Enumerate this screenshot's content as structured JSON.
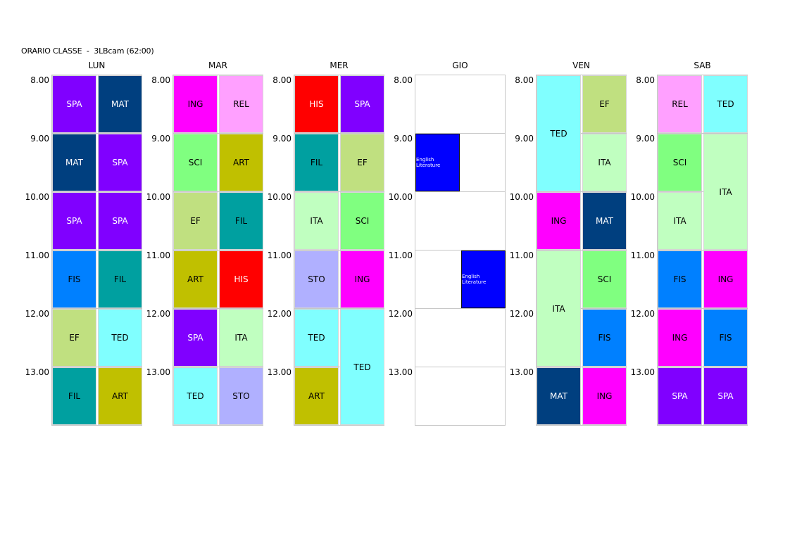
{
  "title": "ORARIO CLASSE  -  3LBcam (62:00)",
  "hours": [
    "8.00",
    "9.00",
    "10.00",
    "11.00",
    "12.00",
    "13.00"
  ],
  "days": [
    {
      "label": "LUN",
      "entries": [
        {
          "text": "SPA",
          "bg": "#8000ff",
          "fg": "#ffffff",
          "start": 0,
          "span": 1,
          "col": 0,
          "cols": 1
        },
        {
          "text": "MAT",
          "bg": "#003f7f",
          "fg": "#ffffff",
          "start": 0,
          "span": 1,
          "col": 1,
          "cols": 1
        },
        {
          "text": "MAT",
          "bg": "#003f7f",
          "fg": "#ffffff",
          "start": 1,
          "span": 1,
          "col": 0,
          "cols": 1
        },
        {
          "text": "SPA",
          "bg": "#8000ff",
          "fg": "#ffffff",
          "start": 1,
          "span": 1,
          "col": 1,
          "cols": 1
        },
        {
          "text": "SPA",
          "bg": "#8000ff",
          "fg": "#ffffff",
          "start": 2,
          "span": 1,
          "col": 0,
          "cols": 1
        },
        {
          "text": "SPA",
          "bg": "#8000ff",
          "fg": "#ffffff",
          "start": 2,
          "span": 1,
          "col": 1,
          "cols": 1
        },
        {
          "text": "FIS",
          "bg": "#0080ff",
          "fg": "#000000",
          "start": 3,
          "span": 1,
          "col": 0,
          "cols": 1
        },
        {
          "text": "FIL",
          "bg": "#00a0a0",
          "fg": "#000000",
          "start": 3,
          "span": 1,
          "col": 1,
          "cols": 1
        },
        {
          "text": "EF",
          "bg": "#c0e080",
          "fg": "#000000",
          "start": 4,
          "span": 1,
          "col": 0,
          "cols": 1
        },
        {
          "text": "TED",
          "bg": "#80ffff",
          "fg": "#000000",
          "start": 4,
          "span": 1,
          "col": 1,
          "cols": 1
        },
        {
          "text": "FIL",
          "bg": "#00a0a0",
          "fg": "#000000",
          "start": 5,
          "span": 1,
          "col": 0,
          "cols": 1
        },
        {
          "text": "ART",
          "bg": "#c0c000",
          "fg": "#000000",
          "start": 5,
          "span": 1,
          "col": 1,
          "cols": 1
        }
      ]
    },
    {
      "label": "MAR",
      "entries": [
        {
          "text": "ING",
          "bg": "#ff00ff",
          "fg": "#000000",
          "start": 0,
          "span": 1,
          "col": 0,
          "cols": 1
        },
        {
          "text": "REL",
          "bg": "#ffa0ff",
          "fg": "#000000",
          "start": 0,
          "span": 1,
          "col": 1,
          "cols": 1
        },
        {
          "text": "SCI",
          "bg": "#80ff80",
          "fg": "#000000",
          "start": 1,
          "span": 1,
          "col": 0,
          "cols": 1
        },
        {
          "text": "ART",
          "bg": "#c0c000",
          "fg": "#000000",
          "start": 1,
          "span": 1,
          "col": 1,
          "cols": 1
        },
        {
          "text": "EF",
          "bg": "#c0e080",
          "fg": "#000000",
          "start": 2,
          "span": 1,
          "col": 0,
          "cols": 1
        },
        {
          "text": "FIL",
          "bg": "#00a0a0",
          "fg": "#000000",
          "start": 2,
          "span": 1,
          "col": 1,
          "cols": 1
        },
        {
          "text": "ART",
          "bg": "#c0c000",
          "fg": "#000000",
          "start": 3,
          "span": 1,
          "col": 0,
          "cols": 1
        },
        {
          "text": "HIS",
          "bg": "#ff0000",
          "fg": "#ffffff",
          "start": 3,
          "span": 1,
          "col": 1,
          "cols": 1
        },
        {
          "text": "SPA",
          "bg": "#8000ff",
          "fg": "#ffffff",
          "start": 4,
          "span": 1,
          "col": 0,
          "cols": 1
        },
        {
          "text": "ITA",
          "bg": "#c0ffc0",
          "fg": "#000000",
          "start": 4,
          "span": 1,
          "col": 1,
          "cols": 1
        },
        {
          "text": "TED",
          "bg": "#80ffff",
          "fg": "#000000",
          "start": 5,
          "span": 1,
          "col": 0,
          "cols": 1
        },
        {
          "text": "STO",
          "bg": "#b0b0ff",
          "fg": "#000000",
          "start": 5,
          "span": 1,
          "col": 1,
          "cols": 1
        }
      ]
    },
    {
      "label": "MER",
      "entries": [
        {
          "text": "HIS",
          "bg": "#ff0000",
          "fg": "#ffffff",
          "start": 0,
          "span": 1,
          "col": 0,
          "cols": 1
        },
        {
          "text": "SPA",
          "bg": "#8000ff",
          "fg": "#ffffff",
          "start": 0,
          "span": 1,
          "col": 1,
          "cols": 1
        },
        {
          "text": "FIL",
          "bg": "#00a0a0",
          "fg": "#000000",
          "start": 1,
          "span": 1,
          "col": 0,
          "cols": 1
        },
        {
          "text": "EF",
          "bg": "#c0e080",
          "fg": "#000000",
          "start": 1,
          "span": 1,
          "col": 1,
          "cols": 1
        },
        {
          "text": "ITA",
          "bg": "#c0ffc0",
          "fg": "#000000",
          "start": 2,
          "span": 1,
          "col": 0,
          "cols": 1
        },
        {
          "text": "SCI",
          "bg": "#80ff80",
          "fg": "#000000",
          "start": 2,
          "span": 1,
          "col": 1,
          "cols": 1
        },
        {
          "text": "STO",
          "bg": "#b0b0ff",
          "fg": "#000000",
          "start": 3,
          "span": 1,
          "col": 0,
          "cols": 1
        },
        {
          "text": "ING",
          "bg": "#ff00ff",
          "fg": "#000000",
          "start": 3,
          "span": 1,
          "col": 1,
          "cols": 1
        },
        {
          "text": "TED",
          "bg": "#80ffff",
          "fg": "#000000",
          "start": 4,
          "span": 1,
          "col": 0,
          "cols": 1
        },
        {
          "text": "TED",
          "bg": "#80ffff",
          "fg": "#000000",
          "start": 4,
          "span": 2,
          "col": 1,
          "cols": 1
        },
        {
          "text": "ART",
          "bg": "#c0c000",
          "fg": "#000000",
          "start": 5,
          "span": 1,
          "col": 0,
          "cols": 1
        }
      ]
    },
    {
      "label": "GIO",
      "entries": [
        {
          "text": "English Literature",
          "bg": "#0000ff",
          "fg": "#ffffff",
          "start": 1,
          "span": 1,
          "col": 0,
          "cols": 1,
          "small": true
        },
        {
          "text": "English Literature",
          "bg": "#0000ff",
          "fg": "#ffffff",
          "start": 3,
          "span": 1,
          "col": 1,
          "cols": 1,
          "small": true
        }
      ]
    },
    {
      "label": "VEN",
      "entries": [
        {
          "text": "TED",
          "bg": "#80ffff",
          "fg": "#000000",
          "start": 0,
          "span": 2,
          "col": 0,
          "cols": 1
        },
        {
          "text": "EF",
          "bg": "#c0e080",
          "fg": "#000000",
          "start": 0,
          "span": 1,
          "col": 1,
          "cols": 1
        },
        {
          "text": "ITA",
          "bg": "#c0ffc0",
          "fg": "#000000",
          "start": 1,
          "span": 1,
          "col": 1,
          "cols": 1
        },
        {
          "text": "ING",
          "bg": "#ff00ff",
          "fg": "#000000",
          "start": 2,
          "span": 1,
          "col": 0,
          "cols": 1
        },
        {
          "text": "MAT",
          "bg": "#003f7f",
          "fg": "#ffffff",
          "start": 2,
          "span": 1,
          "col": 1,
          "cols": 1
        },
        {
          "text": "ITA",
          "bg": "#c0ffc0",
          "fg": "#000000",
          "start": 3,
          "span": 2,
          "col": 0,
          "cols": 1
        },
        {
          "text": "SCI",
          "bg": "#80ff80",
          "fg": "#000000",
          "start": 3,
          "span": 1,
          "col": 1,
          "cols": 1
        },
        {
          "text": "FIS",
          "bg": "#0080ff",
          "fg": "#000000",
          "start": 4,
          "span": 1,
          "col": 1,
          "cols": 1
        },
        {
          "text": "MAT",
          "bg": "#003f7f",
          "fg": "#ffffff",
          "start": 5,
          "span": 1,
          "col": 0,
          "cols": 1
        },
        {
          "text": "ING",
          "bg": "#ff00ff",
          "fg": "#000000",
          "start": 5,
          "span": 1,
          "col": 1,
          "cols": 1
        }
      ]
    },
    {
      "label": "SAB",
      "entries": [
        {
          "text": "REL",
          "bg": "#ffa0ff",
          "fg": "#000000",
          "start": 0,
          "span": 1,
          "col": 0,
          "cols": 1
        },
        {
          "text": "TED",
          "bg": "#80ffff",
          "fg": "#000000",
          "start": 0,
          "span": 1,
          "col": 1,
          "cols": 1
        },
        {
          "text": "SCI",
          "bg": "#80ff80",
          "fg": "#000000",
          "start": 1,
          "span": 1,
          "col": 0,
          "cols": 1
        },
        {
          "text": "ITA",
          "bg": "#c0ffc0",
          "fg": "#000000",
          "start": 1,
          "span": 2,
          "col": 1,
          "cols": 1
        },
        {
          "text": "ITA",
          "bg": "#c0ffc0",
          "fg": "#000000",
          "start": 2,
          "span": 1,
          "col": 0,
          "cols": 1
        },
        {
          "text": "FIS",
          "bg": "#0080ff",
          "fg": "#000000",
          "start": 3,
          "span": 1,
          "col": 0,
          "cols": 1
        },
        {
          "text": "ING",
          "bg": "#ff00ff",
          "fg": "#000000",
          "start": 3,
          "span": 1,
          "col": 1,
          "cols": 1
        },
        {
          "text": "ING",
          "bg": "#ff00ff",
          "fg": "#000000",
          "start": 4,
          "span": 1,
          "col": 0,
          "cols": 1
        },
        {
          "text": "FIS",
          "bg": "#0080ff",
          "fg": "#000000",
          "start": 4,
          "span": 1,
          "col": 1,
          "cols": 1
        },
        {
          "text": "SPA",
          "bg": "#8000ff",
          "fg": "#ffffff",
          "start": 5,
          "span": 1,
          "col": 0,
          "cols": 1
        },
        {
          "text": "SPA",
          "bg": "#8000ff",
          "fg": "#ffffff",
          "start": 5,
          "span": 1,
          "col": 1,
          "cols": 1
        }
      ]
    }
  ]
}
